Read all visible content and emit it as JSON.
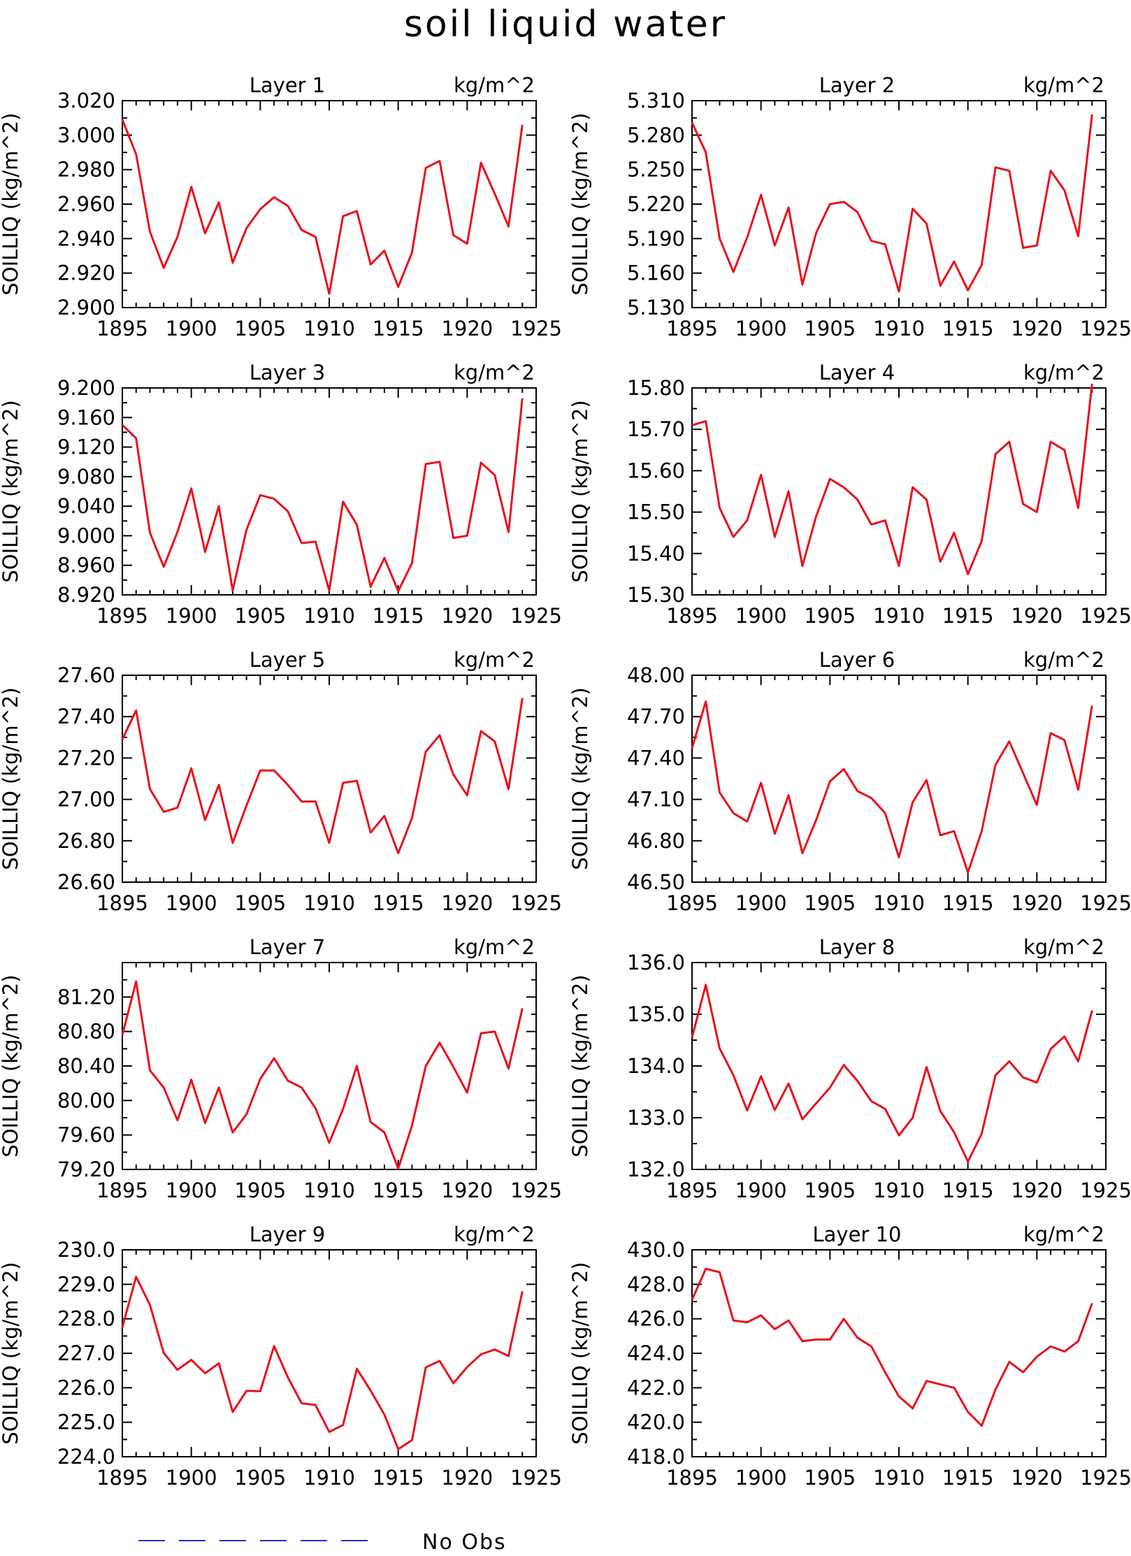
{
  "title": "soil liquid water",
  "legend": {
    "label": "No Obs",
    "line_color": "#1f2fd0"
  },
  "line_color": "#e8111b",
  "chart_data": [
    {
      "type": "line",
      "panel_title": "Layer 1",
      "units": "kg/m^2",
      "ylabel": "SOILLIQ  (kg/m^2)",
      "xlim": [
        1895,
        1925
      ],
      "xticks": [
        "1895",
        "1900",
        "1905",
        "1910",
        "1915",
        "1920",
        "1925"
      ],
      "ylim": [
        2.9,
        3.02
      ],
      "yticks": [
        "2.900",
        "2.920",
        "2.940",
        "2.960",
        "2.980",
        "3.000",
        "3.020"
      ],
      "x": [
        1895,
        1896,
        1897,
        1898,
        1899,
        1900,
        1901,
        1902,
        1903,
        1904,
        1905,
        1906,
        1907,
        1908,
        1909,
        1910,
        1911,
        1912,
        1913,
        1914,
        1915,
        1916,
        1917,
        1918,
        1919,
        1920,
        1921,
        1922,
        1923,
        1924
      ],
      "values": [
        3.009,
        2.989,
        2.944,
        2.923,
        2.941,
        2.97,
        2.943,
        2.961,
        2.926,
        2.946,
        2.957,
        2.964,
        2.959,
        2.945,
        2.941,
        2.908,
        2.953,
        2.956,
        2.925,
        2.933,
        2.912,
        2.932,
        2.981,
        2.985,
        2.942,
        2.937,
        2.984,
        2.966,
        2.947,
        3.006
      ]
    },
    {
      "type": "line",
      "panel_title": "Layer 2",
      "units": "kg/m^2",
      "ylabel": "SOILLIQ  (kg/m^2)",
      "xlim": [
        1895,
        1925
      ],
      "xticks": [
        "1895",
        "1900",
        "1905",
        "1910",
        "1915",
        "1920",
        "1925"
      ],
      "ylim": [
        5.13,
        5.31
      ],
      "yticks": [
        "5.130",
        "5.160",
        "5.190",
        "5.220",
        "5.250",
        "5.280",
        "5.310"
      ],
      "x": [
        1895,
        1896,
        1897,
        1898,
        1899,
        1900,
        1901,
        1902,
        1903,
        1904,
        1905,
        1906,
        1907,
        1908,
        1909,
        1910,
        1911,
        1912,
        1913,
        1914,
        1915,
        1916,
        1917,
        1918,
        1919,
        1920,
        1921,
        1922,
        1923,
        1924
      ],
      "values": [
        5.291,
        5.265,
        5.19,
        5.161,
        5.191,
        5.228,
        5.184,
        5.217,
        5.15,
        5.195,
        5.22,
        5.222,
        5.213,
        5.188,
        5.185,
        5.144,
        5.216,
        5.203,
        5.149,
        5.17,
        5.145,
        5.167,
        5.252,
        5.249,
        5.182,
        5.184,
        5.249,
        5.232,
        5.192,
        5.298
      ]
    },
    {
      "type": "line",
      "panel_title": "Layer 3",
      "units": "kg/m^2",
      "ylabel": "SOILLIQ  (kg/m^2)",
      "xlim": [
        1895,
        1925
      ],
      "xticks": [
        "1895",
        "1900",
        "1905",
        "1910",
        "1915",
        "1920",
        "1925"
      ],
      "ylim": [
        8.92,
        9.2
      ],
      "yticks": [
        "8.920",
        "8.960",
        "9.000",
        "9.040",
        "9.080",
        "9.120",
        "9.160",
        "9.200"
      ],
      "x": [
        1895,
        1896,
        1897,
        1898,
        1899,
        1900,
        1901,
        1902,
        1903,
        1904,
        1905,
        1906,
        1907,
        1908,
        1909,
        1910,
        1911,
        1912,
        1913,
        1914,
        1915,
        1916,
        1917,
        1918,
        1919,
        1920,
        1921,
        1922,
        1923,
        1924
      ],
      "values": [
        9.15,
        9.132,
        9.004,
        8.958,
        9.005,
        9.064,
        8.978,
        9.04,
        8.926,
        9.008,
        9.055,
        9.05,
        9.033,
        8.99,
        8.992,
        8.926,
        9.046,
        9.015,
        8.931,
        8.97,
        8.925,
        8.963,
        9.097,
        9.1,
        8.997,
        9.0,
        9.099,
        9.082,
        9.005,
        9.186
      ]
    },
    {
      "type": "line",
      "panel_title": "Layer 4",
      "units": "kg/m^2",
      "ylabel": "SOILLIQ  (kg/m^2)",
      "xlim": [
        1895,
        1925
      ],
      "xticks": [
        "1895",
        "1900",
        "1905",
        "1910",
        "1915",
        "1920",
        "1925"
      ],
      "ylim": [
        15.3,
        15.8
      ],
      "yticks": [
        "15.30",
        "15.40",
        "15.50",
        "15.60",
        "15.70",
        "15.80"
      ],
      "x": [
        1895,
        1896,
        1897,
        1898,
        1899,
        1900,
        1901,
        1902,
        1903,
        1904,
        1905,
        1906,
        1907,
        1908,
        1909,
        1910,
        1911,
        1912,
        1913,
        1914,
        1915,
        1916,
        1917,
        1918,
        1919,
        1920,
        1921,
        1922,
        1923,
        1924
      ],
      "values": [
        15.71,
        15.72,
        15.51,
        15.44,
        15.48,
        15.59,
        15.44,
        15.55,
        15.37,
        15.49,
        15.58,
        15.56,
        15.53,
        15.47,
        15.48,
        15.37,
        15.56,
        15.53,
        15.38,
        15.45,
        15.35,
        15.43,
        15.64,
        15.67,
        15.52,
        15.5,
        15.67,
        15.65,
        15.51,
        15.81
      ]
    },
    {
      "type": "line",
      "panel_title": "Layer 5",
      "units": "kg/m^2",
      "ylabel": "SOILLIQ  (kg/m^2)",
      "xlim": [
        1895,
        1925
      ],
      "xticks": [
        "1895",
        "1900",
        "1905",
        "1910",
        "1915",
        "1920",
        "1925"
      ],
      "ylim": [
        26.6,
        27.6
      ],
      "yticks": [
        "26.60",
        "26.80",
        "27.00",
        "27.20",
        "27.40",
        "27.60"
      ],
      "x": [
        1895,
        1896,
        1897,
        1898,
        1899,
        1900,
        1901,
        1902,
        1903,
        1904,
        1905,
        1906,
        1907,
        1908,
        1909,
        1910,
        1911,
        1912,
        1913,
        1914,
        1915,
        1916,
        1917,
        1918,
        1919,
        1920,
        1921,
        1922,
        1923,
        1924
      ],
      "values": [
        27.29,
        27.43,
        27.05,
        26.94,
        26.96,
        27.15,
        26.9,
        27.07,
        26.79,
        26.97,
        27.14,
        27.14,
        27.07,
        26.99,
        26.99,
        26.79,
        27.08,
        27.09,
        26.84,
        26.92,
        26.74,
        26.91,
        27.23,
        27.31,
        27.12,
        27.02,
        27.33,
        27.28,
        27.05,
        27.49
      ]
    },
    {
      "type": "line",
      "panel_title": "Layer 6",
      "units": "kg/m^2",
      "ylabel": "SOILLIQ  (kg/m^2)",
      "xlim": [
        1895,
        1925
      ],
      "xticks": [
        "1895",
        "1900",
        "1905",
        "1910",
        "1915",
        "1920",
        "1925"
      ],
      "ylim": [
        46.5,
        48.0
      ],
      "yticks": [
        "46.50",
        "46.80",
        "47.10",
        "47.40",
        "47.70",
        "48.00"
      ],
      "x": [
        1895,
        1896,
        1897,
        1898,
        1899,
        1900,
        1901,
        1902,
        1903,
        1904,
        1905,
        1906,
        1907,
        1908,
        1909,
        1910,
        1911,
        1912,
        1913,
        1914,
        1915,
        1916,
        1917,
        1918,
        1919,
        1920,
        1921,
        1922,
        1923,
        1924
      ],
      "values": [
        47.47,
        47.81,
        47.15,
        47.0,
        46.94,
        47.22,
        46.85,
        47.13,
        46.71,
        46.95,
        47.23,
        47.32,
        47.16,
        47.11,
        47.0,
        46.68,
        47.08,
        47.24,
        46.84,
        46.87,
        46.57,
        46.87,
        47.35,
        47.52,
        47.29,
        47.06,
        47.58,
        47.53,
        47.17,
        47.78
      ]
    },
    {
      "type": "line",
      "panel_title": "Layer 7",
      "units": "kg/m^2",
      "ylabel": "SOILLIQ  (kg/m^2)",
      "xlim": [
        1895,
        1925
      ],
      "xticks": [
        "1895",
        "1900",
        "1905",
        "1910",
        "1915",
        "1920",
        "1925"
      ],
      "ylim": [
        79.2,
        81.6
      ],
      "yticks": [
        "79.20",
        "79.60",
        "80.00",
        "80.40",
        "80.80",
        "81.20"
      ],
      "x": [
        1895,
        1896,
        1897,
        1898,
        1899,
        1900,
        1901,
        1902,
        1903,
        1904,
        1905,
        1906,
        1907,
        1908,
        1909,
        1910,
        1911,
        1912,
        1913,
        1914,
        1915,
        1916,
        1917,
        1918,
        1919,
        1920,
        1921,
        1922,
        1923,
        1924
      ],
      "values": [
        80.76,
        81.38,
        80.35,
        80.15,
        79.77,
        80.24,
        79.74,
        80.15,
        79.63,
        79.84,
        80.25,
        80.49,
        80.23,
        80.15,
        79.91,
        79.51,
        79.9,
        80.4,
        79.75,
        79.63,
        79.21,
        79.71,
        80.4,
        80.67,
        80.39,
        80.09,
        80.78,
        80.8,
        80.37,
        81.07
      ]
    },
    {
      "type": "line",
      "panel_title": "Layer 8",
      "units": "kg/m^2",
      "ylabel": "SOILLIQ  (kg/m^2)",
      "xlim": [
        1895,
        1925
      ],
      "xticks": [
        "1895",
        "1900",
        "1905",
        "1910",
        "1915",
        "1920",
        "1925"
      ],
      "ylim": [
        132.0,
        136.0
      ],
      "yticks": [
        "132.0",
        "133.0",
        "134.0",
        "135.0",
        "136.0"
      ],
      "x": [
        1895,
        1896,
        1897,
        1898,
        1899,
        1900,
        1901,
        1902,
        1903,
        1904,
        1905,
        1906,
        1907,
        1908,
        1909,
        1910,
        1911,
        1912,
        1913,
        1914,
        1915,
        1916,
        1917,
        1918,
        1919,
        1920,
        1921,
        1922,
        1923,
        1924
      ],
      "values": [
        134.55,
        135.57,
        134.34,
        133.82,
        133.14,
        133.8,
        133.15,
        133.66,
        132.97,
        133.28,
        133.58,
        134.02,
        133.71,
        133.32,
        133.17,
        132.66,
        133.0,
        133.98,
        133.13,
        132.72,
        132.15,
        132.69,
        133.82,
        134.09,
        133.78,
        133.68,
        134.33,
        134.57,
        134.09,
        135.07
      ]
    },
    {
      "type": "line",
      "panel_title": "Layer 9",
      "units": "kg/m^2",
      "ylabel": "SOILLIQ  (kg/m^2)",
      "xlim": [
        1895,
        1925
      ],
      "xticks": [
        "1895",
        "1900",
        "1905",
        "1910",
        "1915",
        "1920",
        "1925"
      ],
      "ylim": [
        224.0,
        230.0
      ],
      "yticks": [
        "224.0",
        "225.0",
        "226.0",
        "227.0",
        "228.0",
        "229.0",
        "230.0"
      ],
      "x": [
        1895,
        1896,
        1897,
        1898,
        1899,
        1900,
        1901,
        1902,
        1903,
        1904,
        1905,
        1906,
        1907,
        1908,
        1909,
        1910,
        1911,
        1912,
        1913,
        1914,
        1915,
        1916,
        1917,
        1918,
        1919,
        1920,
        1921,
        1922,
        1923,
        1924
      ],
      "values": [
        227.75,
        229.22,
        228.4,
        227.01,
        226.52,
        226.81,
        226.42,
        226.71,
        225.3,
        225.91,
        225.9,
        227.21,
        226.3,
        225.55,
        225.5,
        224.72,
        224.92,
        226.55,
        225.92,
        225.22,
        224.22,
        224.48,
        226.59,
        226.78,
        226.13,
        226.6,
        226.97,
        227.11,
        226.92,
        228.8
      ]
    },
    {
      "type": "line",
      "panel_title": "Layer 10",
      "units": "kg/m^2",
      "ylabel": "SOILLIQ  (kg/m^2)",
      "xlim": [
        1895,
        1925
      ],
      "xticks": [
        "1895",
        "1900",
        "1905",
        "1910",
        "1915",
        "1920",
        "1925"
      ],
      "ylim": [
        418.0,
        430.0
      ],
      "yticks": [
        "418.0",
        "420.0",
        "422.0",
        "424.0",
        "426.0",
        "428.0",
        "430.0"
      ],
      "x": [
        1895,
        1896,
        1897,
        1898,
        1899,
        1900,
        1901,
        1902,
        1903,
        1904,
        1905,
        1906,
        1907,
        1908,
        1909,
        1910,
        1911,
        1912,
        1913,
        1914,
        1915,
        1916,
        1917,
        1918,
        1919,
        1920,
        1921,
        1922,
        1923,
        1924
      ],
      "values": [
        427.1,
        428.9,
        428.7,
        425.9,
        425.8,
        426.2,
        425.4,
        425.9,
        424.7,
        424.8,
        424.8,
        426.0,
        424.9,
        424.4,
        422.9,
        421.5,
        420.8,
        422.4,
        422.2,
        422.0,
        420.6,
        419.8,
        421.9,
        423.5,
        422.9,
        423.8,
        424.4,
        424.1,
        424.7,
        426.9
      ]
    }
  ]
}
